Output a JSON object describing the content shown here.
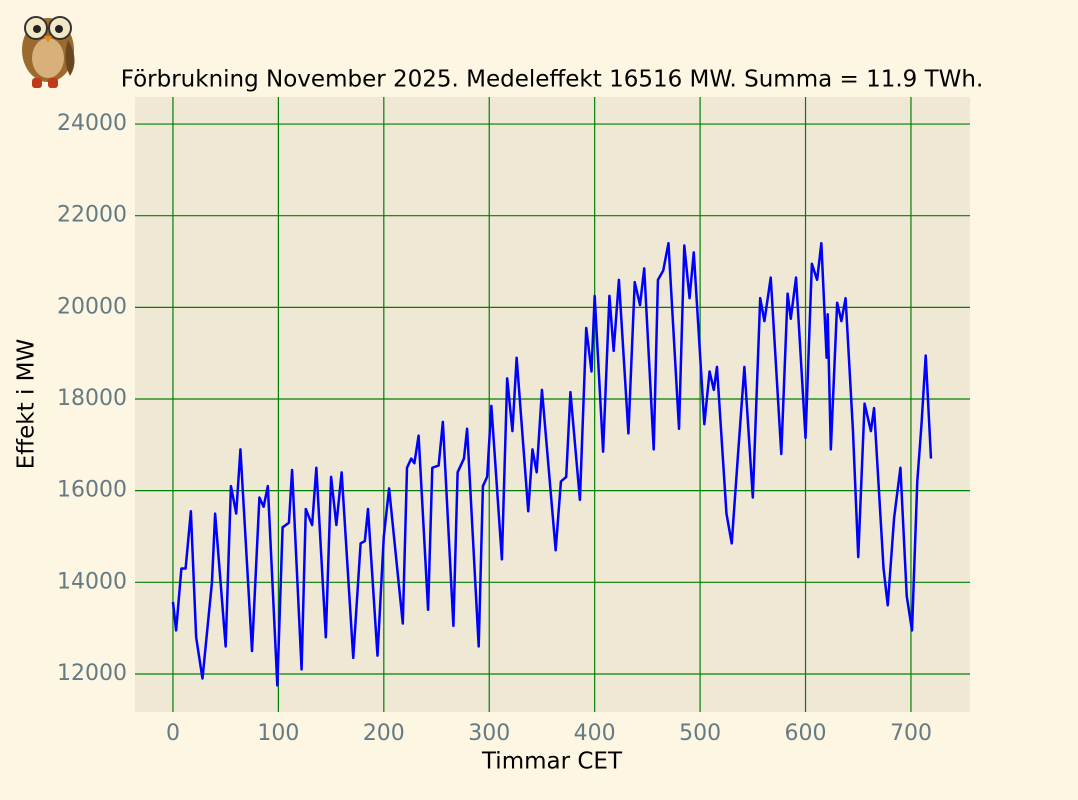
{
  "chart_data": {
    "type": "line",
    "title": "Förbrukning November 2025. Medeleffekt 16516 MW. Summa = 11.9 TWh.",
    "xlabel": "Timmar CET",
    "ylabel": "Effekt i MW",
    "x": [
      0,
      3,
      8,
      12,
      17,
      22,
      28,
      37,
      40,
      50,
      55,
      60,
      64,
      75,
      82,
      86,
      90,
      99,
      104,
      110,
      113,
      122,
      126,
      132,
      136,
      145,
      150,
      155,
      160,
      171,
      178,
      182,
      185,
      194,
      200,
      205,
      218,
      222,
      226,
      229,
      233,
      242,
      246,
      252,
      256,
      266,
      270,
      276,
      279,
      290,
      294,
      298,
      302,
      312,
      317,
      322,
      326,
      337,
      341,
      345,
      350,
      363,
      368,
      373,
      377,
      386,
      392,
      397,
      400,
      408,
      414,
      418,
      423,
      432,
      438,
      443,
      447,
      456,
      460,
      465,
      470,
      480,
      485,
      490,
      494,
      504,
      509,
      513,
      516,
      525,
      530,
      536,
      542,
      550,
      557,
      561,
      567,
      577,
      583,
      586,
      591,
      600,
      606,
      611,
      615,
      620,
      621,
      624,
      630,
      634,
      638,
      645,
      650,
      656,
      662,
      665,
      674,
      678,
      684,
      690,
      696,
      701,
      706,
      710,
      714,
      719
    ],
    "series": [
      {
        "name": "Förbrukning",
        "color": "#0000ff",
        "values": [
          13570,
          12950,
          14300,
          14300,
          15550,
          12800,
          11900,
          14000,
          15500,
          12600,
          16100,
          15500,
          16900,
          12500,
          15850,
          15650,
          16100,
          11750,
          15200,
          15300,
          16450,
          12100,
          15600,
          15250,
          16500,
          12800,
          16300,
          15250,
          16400,
          12350,
          14850,
          14900,
          15600,
          12400,
          15000,
          16050,
          13100,
          16500,
          16700,
          16600,
          17200,
          13400,
          16500,
          16550,
          17500,
          13050,
          16400,
          16700,
          17350,
          12600,
          16100,
          16300,
          17850,
          14500,
          18450,
          17300,
          18900,
          15550,
          16900,
          16400,
          18200,
          14700,
          16200,
          16300,
          18150,
          15800,
          19550,
          18600,
          20250,
          16850,
          20250,
          19050,
          20600,
          17250,
          20550,
          20050,
          20850,
          16900,
          20600,
          20800,
          21400,
          17350,
          21350,
          20200,
          21200,
          17450,
          18600,
          18200,
          18700,
          15500,
          14850,
          16800,
          18700,
          15850,
          20200,
          19700,
          20650,
          16800,
          20300,
          19750,
          20650,
          17150,
          20950,
          20600,
          21400,
          18900,
          19850,
          16900,
          20100,
          19700,
          20200,
          17300,
          14550,
          17900,
          17300,
          17800,
          14300,
          13500,
          15400,
          16500,
          13700,
          12950,
          16200,
          17450,
          18950,
          16700
        ]
      }
    ],
    "xlim": [
      -36,
      756
    ],
    "xticks": [
      0,
      100,
      200,
      300,
      400,
      500,
      600,
      700
    ],
    "ylim": [
      11170,
      24590
    ],
    "yticks": [
      12000,
      14000,
      16000,
      18000,
      20000,
      22000,
      24000
    ],
    "grid": true,
    "grid_color": "#008000",
    "plot_background": "#eee8d5"
  }
}
